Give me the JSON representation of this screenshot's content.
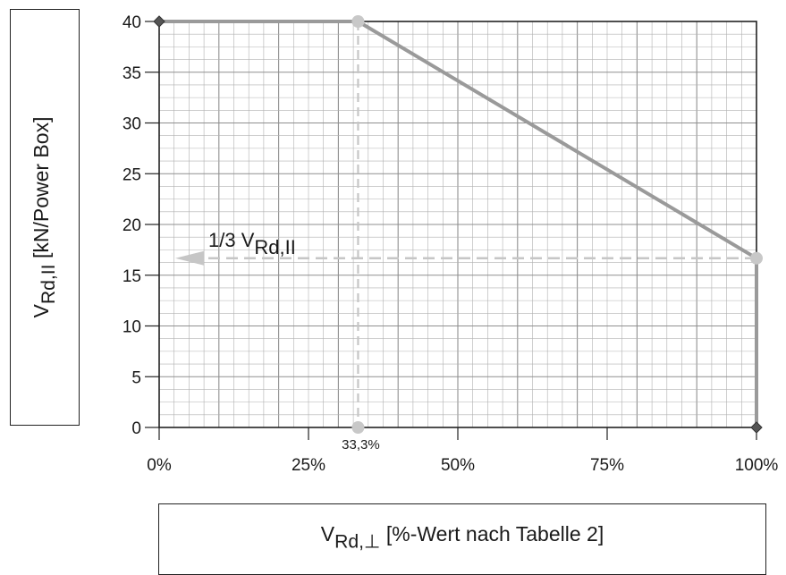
{
  "chart_data": {
    "type": "line",
    "ylabel": {
      "main": "V",
      "sub": "Rd,II",
      "rest": " [kN/Power Box]"
    },
    "xlabel": {
      "main": "V",
      "sub": "Rd,⊥",
      "rest": " [%-Wert nach Tabelle 2]"
    },
    "xlim": [
      0,
      100
    ],
    "ylim": [
      0,
      40
    ],
    "x_ticks": [
      0,
      25,
      50,
      75,
      100
    ],
    "x_tick_labels": [
      "0%",
      "25%",
      "50%",
      "75%",
      "100%"
    ],
    "y_ticks": [
      0,
      5,
      10,
      15,
      20,
      25,
      30,
      35,
      40
    ],
    "y_tick_labels": [
      "0",
      "5",
      "10",
      "15",
      "20",
      "25",
      "30",
      "35",
      "40"
    ],
    "grid": true,
    "series": [
      {
        "x": [
          0,
          33.3,
          100,
          100
        ],
        "y": [
          40,
          40,
          16.67,
          0
        ],
        "color": "#9a9a9a"
      }
    ],
    "annotations": {
      "third_label": {
        "main": "1/3 V",
        "sub": "Rd,II",
        "y": 16.67
      },
      "marker_label": {
        "text": "33,3%",
        "x": 33.3
      }
    },
    "colors": {
      "line": "#9a9a9a",
      "dashed": "#c6c6c6",
      "grid": "#b0b0b0",
      "marker": "#c8c8c8"
    }
  }
}
